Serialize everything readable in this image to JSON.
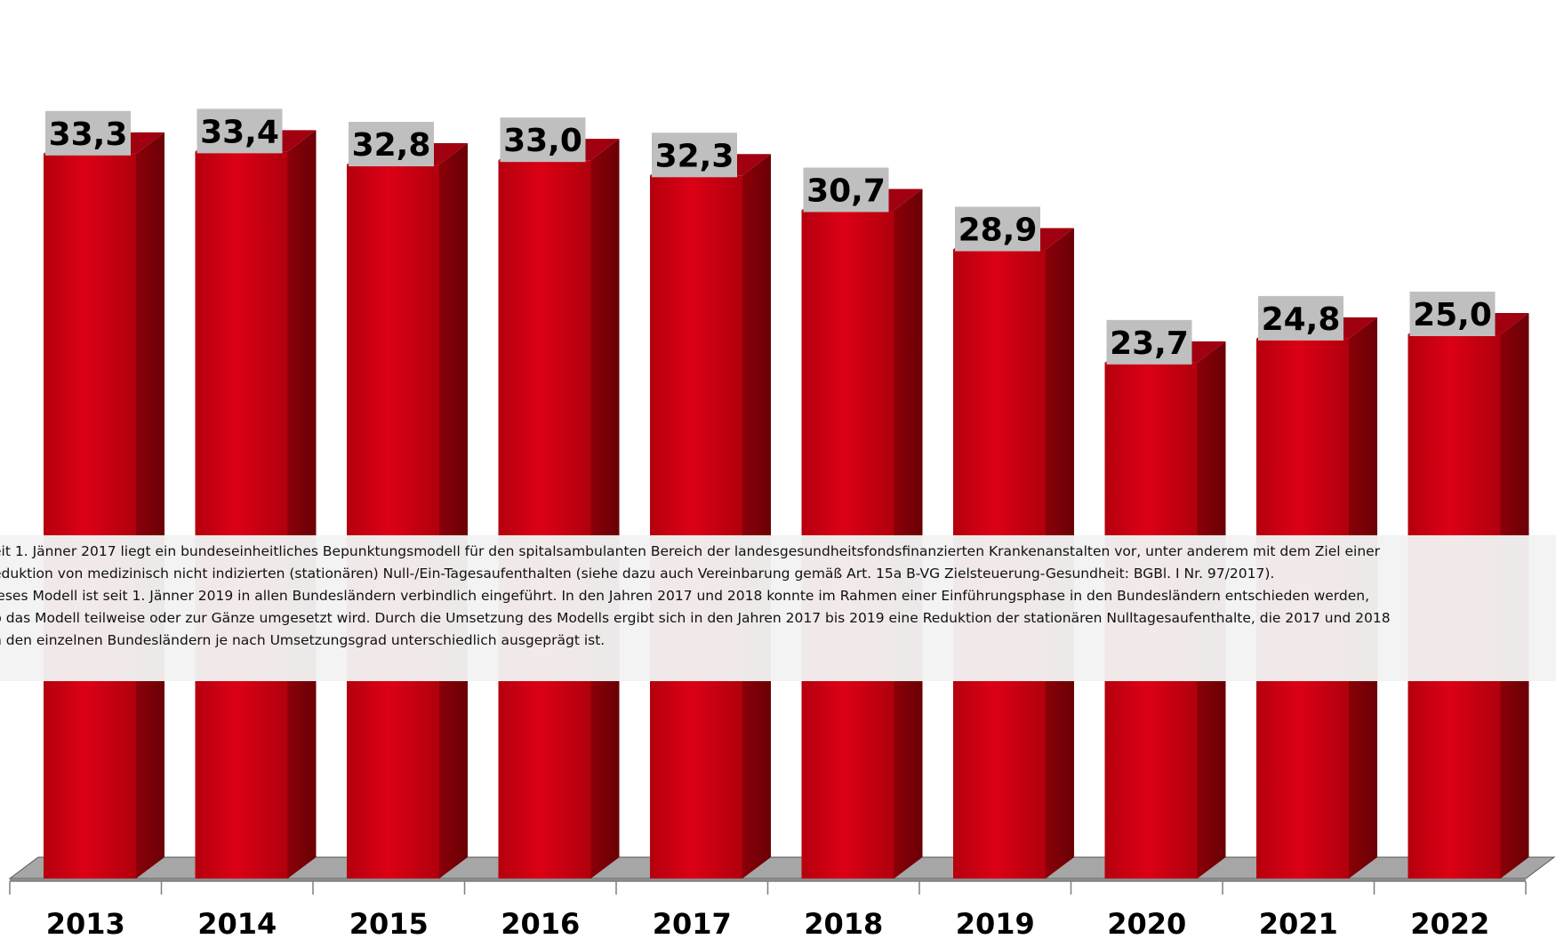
{
  "chart_data": {
    "type": "bar",
    "categories": [
      "2013",
      "2014",
      "2015",
      "2016",
      "2017",
      "2018",
      "2019",
      "2020",
      "2021",
      "2022"
    ],
    "values": [
      33.3,
      33.4,
      32.8,
      33.0,
      32.3,
      30.7,
      28.9,
      23.7,
      24.8,
      25.0
    ],
    "value_labels": [
      "33,3",
      "33,4",
      "32,8",
      "33,0",
      "32,3",
      "30,7",
      "28,9",
      "23,7",
      "24,8",
      "25,0"
    ],
    "ylim": [
      0,
      37
    ],
    "grid": false,
    "legend": "none",
    "bar_style": "3d",
    "colors": {
      "bar_front": "#cc0010",
      "bar_side": "#7a0008",
      "bar_top": "#a00010",
      "floor": "#a6a6a6",
      "label_box": "#bfbfbf"
    }
  },
  "note": {
    "lines": [
      "eit 1. Jänner 2017 liegt ein bundeseinheitliches Bepunktungsmodell für den spitalsambulanten Bereich der landesgesundheitsfondsfinanzierten Krankenanstalten vor, unter anderem mit dem Ziel einer",
      "eduktion von medizinisch nicht indizierten (stationären) Null-/Ein-Tagesaufenthalten (siehe dazu auch Vereinbarung gemäß Art. 15a B-VG Zielsteuerung-Gesundheit: BGBl. I Nr. 97/2017).",
      "ieses Modell ist seit 1. Jänner 2019 in allen Bundesländern verbindlich eingeführt. In den Jahren 2017 und 2018 konnte im Rahmen einer Einführungsphase in den Bundesländern entschieden werden,",
      "b das Modell teilweise oder zur Gänze umgesetzt wird. Durch die Umsetzung des Modells ergibt sich in den Jahren 2017 bis 2019 eine Reduktion der stationären Nulltagesaufenthalte, die 2017 und 2018",
      "n den einzelnen Bundesländern je nach Umsetzungsgrad unterschiedlich ausgeprägt ist."
    ]
  }
}
